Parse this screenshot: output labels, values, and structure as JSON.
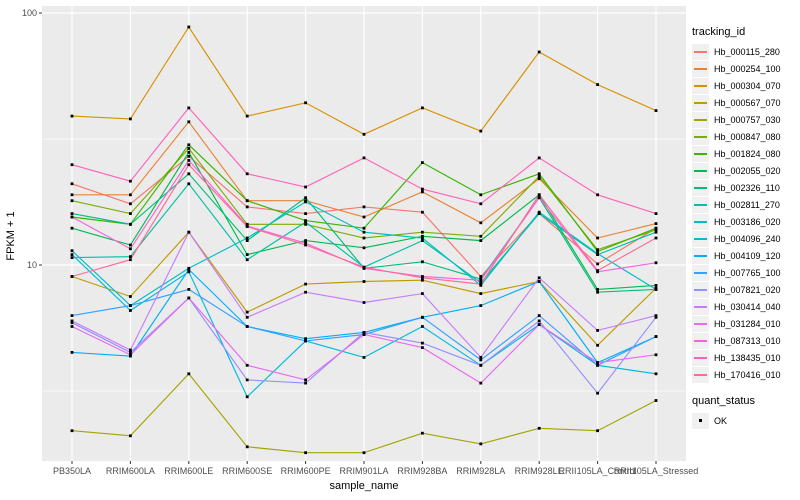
{
  "chart": {
    "ylabel": "FPKM + 1",
    "xlabel": "sample_name"
  },
  "legend": {
    "tracking_title": "tracking_id",
    "quant_title": "quant_status",
    "quant_items": [
      {
        "label": "OK"
      }
    ]
  },
  "colors": {
    "panel_bg": "#ebebeb",
    "grid": "#ffffff",
    "tick": "#333333",
    "point": "#000000",
    "legend_key_bg": "#f0f0f0"
  },
  "chart_data": {
    "type": "line",
    "title": "",
    "xlabel": "sample_name",
    "ylabel": "FPKM + 1",
    "y_scale": "log10",
    "ylim": [
      1.67,
      106
    ],
    "y_major_ticks": [
      100,
      10
    ],
    "y_minor_gridlines": [
      31.6,
      3.16
    ],
    "grid": "on",
    "legend_position": "right",
    "marker": {
      "shape": "square",
      "color": "#000000",
      "status_label": "OK"
    },
    "x_categories": [
      "PB350LA",
      "RRIM600LA",
      "RRIM600LE",
      "RRIM600SE",
      "RRIM600PE",
      "RRIM901LA",
      "RRIM928BA",
      "RRIM928LA",
      "RRIM928LE",
      "RRII105LA_Control",
      "RRII105LA_Stressed"
    ],
    "series": [
      {
        "name": "Hb_000115_280",
        "color": "#F8766D",
        "values": [
          21,
          17.5,
          27,
          17,
          16,
          17,
          16.2,
          9,
          16,
          10.1,
          14
        ]
      },
      {
        "name": "Hb_000254_100",
        "color": "#EA8331",
        "values": [
          19,
          19,
          37,
          18,
          18,
          15.5,
          19.5,
          14.7,
          22,
          12.8,
          14.6
        ]
      },
      {
        "name": "Hb_000304_070",
        "color": "#D89000",
        "values": [
          39,
          38,
          88,
          39,
          44,
          33,
          42,
          34,
          70,
          52,
          41
        ]
      },
      {
        "name": "Hb_000567_070",
        "color": "#C09B00",
        "values": [
          9,
          7.5,
          13.5,
          6.5,
          8.4,
          8.6,
          8.7,
          7.7,
          8.6,
          4.8,
          8.1
        ]
      },
      {
        "name": "Hb_000757_030",
        "color": "#A3A500",
        "values": [
          2.2,
          2.1,
          3.7,
          1.9,
          1.8,
          1.8,
          2.15,
          1.95,
          2.25,
          2.2,
          2.9
        ]
      },
      {
        "name": "Hb_000847_080",
        "color": "#7CAE00",
        "values": [
          18,
          16,
          29,
          14.5,
          14.5,
          12.8,
          13.5,
          13,
          22.5,
          11.5,
          13.8
        ]
      },
      {
        "name": "Hb_001824_080",
        "color": "#39B600",
        "values": [
          15.5,
          14.5,
          30,
          18,
          15,
          14,
          25.5,
          19,
          23,
          11.3,
          14
        ]
      },
      {
        "name": "Hb_002055_020",
        "color": "#00BB4E",
        "values": [
          14,
          12,
          28,
          11,
          12.5,
          11.7,
          13,
          12.5,
          19,
          8,
          8.3
        ]
      },
      {
        "name": "Hb_002326_110",
        "color": "#00BF7D",
        "values": [
          16,
          14.5,
          23,
          12.5,
          18.5,
          9.7,
          10.3,
          8.8,
          18.5,
          7.8,
          8
        ]
      },
      {
        "name": "Hb_002811_270",
        "color": "#00C1A3",
        "values": [
          10.7,
          10.8,
          21,
          10.5,
          14.8,
          9.8,
          12.5,
          8.5,
          16,
          11,
          13.5
        ]
      },
      {
        "name": "Hb_003186_020",
        "color": "#00BFC4",
        "values": [
          11.4,
          6.9,
          9.7,
          12.8,
          17.8,
          13.5,
          12.8,
          8.3,
          16.2,
          11.1,
          8
        ]
      },
      {
        "name": "Hb_004096_240",
        "color": "#00BAE0",
        "values": [
          11,
          6.6,
          9.4,
          3,
          5,
          4.3,
          5.7,
          4,
          5.8,
          4,
          3.7
        ]
      },
      {
        "name": "Hb_004109_120",
        "color": "#00B0F6",
        "values": [
          4.5,
          4.35,
          9.6,
          5.7,
          5.1,
          5.4,
          6.2,
          6.9,
          8.6,
          4.1,
          5.2
        ]
      },
      {
        "name": "Hb_007765_100",
        "color": "#35A2FF",
        "values": [
          6.3,
          6.9,
          8,
          5.7,
          5,
          5.3,
          6.2,
          4.2,
          6.3,
          4,
          5.2
        ]
      },
      {
        "name": "Hb_007821_020",
        "color": "#9590FF",
        "values": [
          5.9,
          4.5,
          7.4,
          3.5,
          3.4,
          5.4,
          4.9,
          4,
          6,
          3.1,
          6.2
        ]
      },
      {
        "name": "Hb_030414_040",
        "color": "#C77CFF",
        "values": [
          6,
          4.6,
          13.5,
          6.2,
          7.8,
          7.1,
          7.7,
          4.3,
          8.9,
          5.5,
          6.3
        ]
      },
      {
        "name": "Hb_031284_010",
        "color": "#E76BF3",
        "values": [
          5.7,
          4.4,
          7.4,
          4,
          3.5,
          5.3,
          4.7,
          3.4,
          5.8,
          4.1,
          4.4
        ]
      },
      {
        "name": "Hb_087313_010",
        "color": "#FA62DB",
        "values": [
          15.5,
          11.6,
          26,
          14.3,
          12.2,
          9.7,
          9,
          8.7,
          18.5,
          9.4,
          10.2
        ]
      },
      {
        "name": "Hb_138435_010",
        "color": "#FF62BC",
        "values": [
          25,
          21.5,
          42,
          23,
          20.4,
          26.6,
          20,
          17.5,
          26.6,
          19,
          16
        ]
      },
      {
        "name": "Hb_170416_010",
        "color": "#FF6A98",
        "values": [
          9,
          10.5,
          25,
          14.2,
          12,
          9.8,
          8.9,
          8.4,
          19,
          9.5,
          12.8
        ]
      }
    ]
  }
}
